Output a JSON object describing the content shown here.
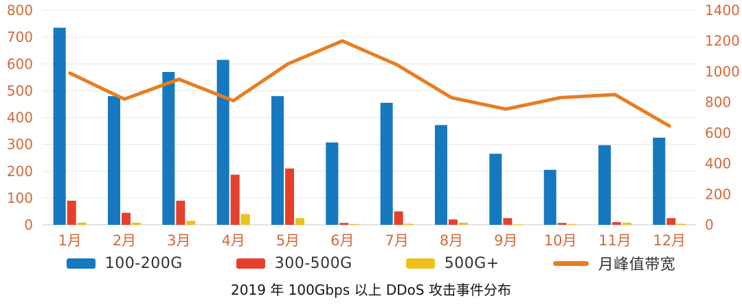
{
  "chart_data": {
    "type": "bar+line",
    "title": "2019 年 100Gbps 以上 DDoS 攻击事件分布",
    "categories": [
      "1月",
      "2月",
      "3月",
      "4月",
      "5月",
      "6月",
      "7月",
      "8月",
      "9月",
      "10月",
      "11月",
      "12月"
    ],
    "left_axis": {
      "min": 0,
      "max": 800,
      "step": 100,
      "ticks": [
        0,
        100,
        200,
        300,
        400,
        500,
        600,
        700,
        800
      ]
    },
    "right_axis": {
      "min": 0,
      "max": 1400,
      "step": 200,
      "ticks": [
        0,
        200,
        400,
        600,
        800,
        1000,
        1200,
        1400
      ]
    },
    "grid": true,
    "legend_position": "bottom",
    "series": [
      {
        "name": "100-200G",
        "type": "bar",
        "axis": "left",
        "color": "#1678be",
        "values": [
          735,
          480,
          570,
          615,
          480,
          307,
          455,
          372,
          265,
          205,
          297,
          325
        ]
      },
      {
        "name": "300-500G",
        "type": "bar",
        "axis": "left",
        "color": "#e6402d",
        "values": [
          90,
          45,
          90,
          187,
          210,
          7,
          50,
          20,
          25,
          7,
          10,
          25
        ]
      },
      {
        "name": "500G+",
        "type": "bar",
        "axis": "left",
        "color": "#eec11d",
        "values": [
          8,
          8,
          15,
          40,
          25,
          3,
          4,
          8,
          2,
          3,
          8,
          4
        ]
      },
      {
        "name": "月峰值带宽",
        "type": "line",
        "axis": "right",
        "color": "#e87d21",
        "values": [
          990,
          820,
          950,
          810,
          1050,
          1200,
          1045,
          830,
          755,
          830,
          850,
          645
        ]
      }
    ]
  },
  "colors": {
    "axis_label": "#d2683a",
    "gridline": "#e6e6e6",
    "zero_line": "#c9c9c9",
    "legend_text": "#333333",
    "title_text": "#151515"
  }
}
